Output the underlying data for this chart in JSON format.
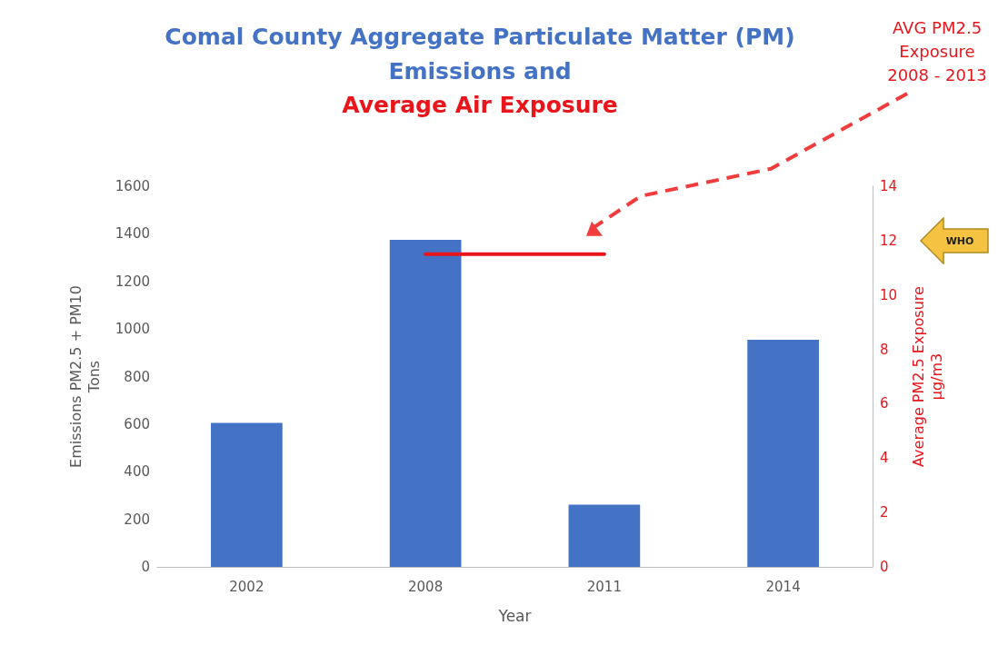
{
  "chart_data": {
    "type": "bar",
    "title": "Comal County Aggregate Particulate Matter (PM)\nEmissions and",
    "subtitle": "Average Air Exposure",
    "xlabel": "Year",
    "ylabel": "Emissions PM2.5 + PM10\nTons",
    "y2label": "Average PM2.5 Exposure\nµg/m3",
    "categories": [
      "2002",
      "2008",
      "2011",
      "2014"
    ],
    "series": [
      {
        "color": "#4472c4",
        "values": [
          605,
          1375,
          262,
          955
        ]
      },
      {
        "type": "line",
        "axis": "y2",
        "color": "#e8151b",
        "values": [
          null,
          11.5,
          11.5,
          null
        ]
      }
    ],
    "ylim": [
      0,
      1600
    ],
    "yticks": [
      0,
      200,
      400,
      600,
      800,
      1000,
      1200,
      1400,
      1600
    ],
    "y2lim": [
      0,
      14
    ],
    "y2ticks": [
      0,
      2,
      4,
      6,
      8,
      10,
      12,
      14
    ],
    "annotations": [
      "AVG PM2.5 Exposure 2008 - 2013",
      "WHO"
    ],
    "grid": false,
    "marker": "none",
    "line_style": "solid"
  }
}
